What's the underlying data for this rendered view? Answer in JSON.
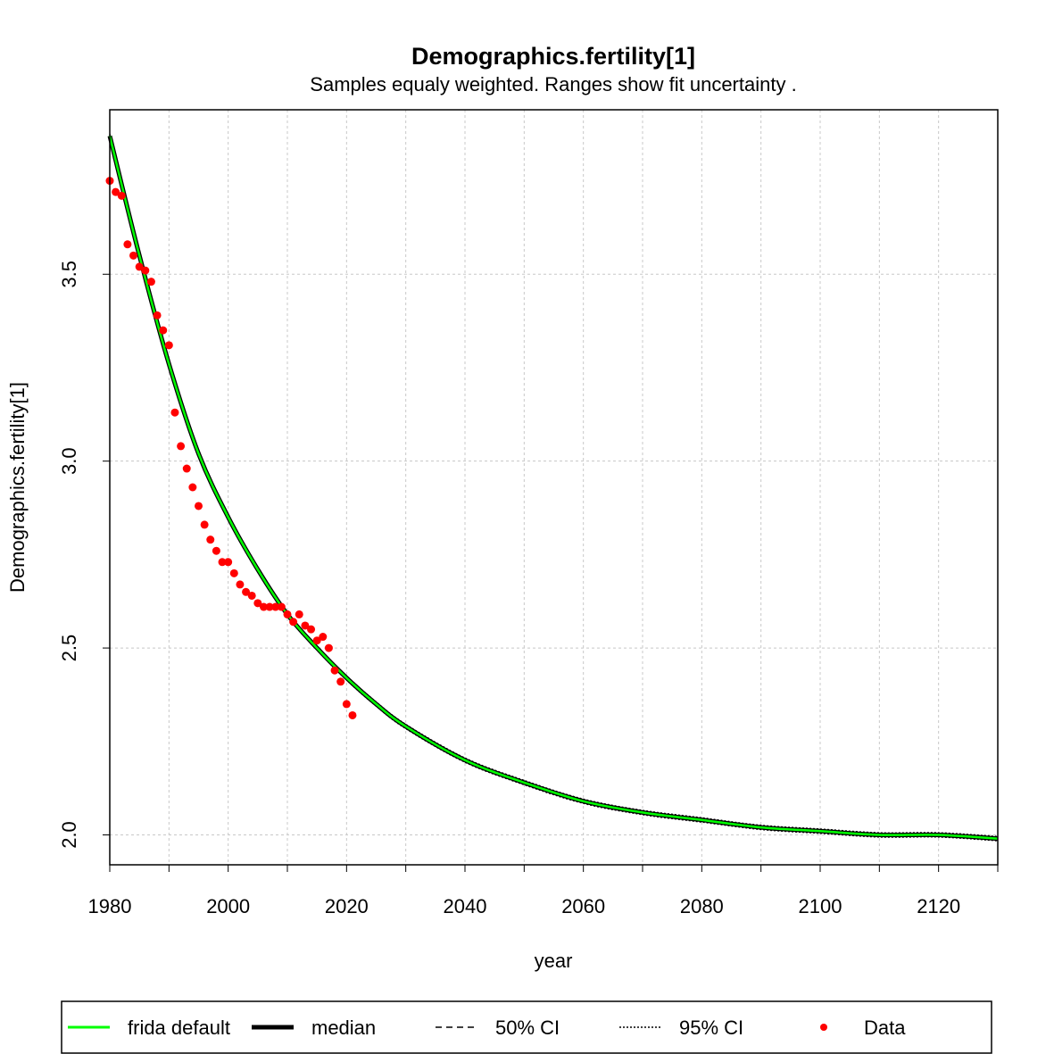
{
  "chart_data": {
    "type": "line",
    "title": "Demographics.fertility[1]",
    "subtitle": "Samples equaly weighted. Ranges show  fit uncertainty .",
    "xlabel": "year",
    "ylabel": "Demographics.fertility[1]",
    "xlim": [
      1980,
      2130
    ],
    "ylim": [
      1.92,
      3.94
    ],
    "x_ticks": [
      "1980",
      "2000",
      "2020",
      "2040",
      "2060",
      "2080",
      "2100",
      "2120"
    ],
    "y_ticks": [
      "2.0",
      "2.5",
      "3.0",
      "3.5"
    ],
    "grid": true,
    "legend_position": "bottom",
    "legend": [
      {
        "label": "frida default",
        "style": "green-line"
      },
      {
        "label": "median",
        "style": "thick-black-line"
      },
      {
        "label": "50% CI",
        "style": "dashed-line"
      },
      {
        "label": "95% CI",
        "style": "dotted-line"
      },
      {
        "label": "Data",
        "style": "red-point"
      }
    ],
    "colors": {
      "frida_default": "#00ff00",
      "median": "#000000",
      "data": "#ff0000",
      "grid": "#c8c8c8"
    },
    "series": [
      {
        "name": "frida default",
        "x": [
          1980,
          1985,
          1990,
          1995,
          2000,
          2005,
          2010,
          2015,
          2020,
          2025,
          2030,
          2040,
          2050,
          2060,
          2070,
          2080,
          2090,
          2100,
          2110,
          2120,
          2130
        ],
        "y": [
          3.87,
          3.55,
          3.26,
          3.02,
          2.85,
          2.71,
          2.59,
          2.5,
          2.42,
          2.35,
          2.29,
          2.2,
          2.14,
          2.09,
          2.06,
          2.04,
          2.02,
          2.01,
          2.0,
          2.0,
          1.99
        ]
      },
      {
        "name": "median",
        "x": [
          1980,
          1985,
          1990,
          1995,
          2000,
          2005,
          2010,
          2015,
          2020,
          2025,
          2030,
          2040,
          2050,
          2060,
          2070,
          2080,
          2090,
          2100,
          2110,
          2120,
          2130
        ],
        "y": [
          3.87,
          3.55,
          3.26,
          3.02,
          2.85,
          2.71,
          2.59,
          2.5,
          2.42,
          2.35,
          2.29,
          2.2,
          2.14,
          2.09,
          2.06,
          2.04,
          2.02,
          2.01,
          2.0,
          2.0,
          1.99
        ]
      },
      {
        "name": "Data",
        "x": [
          1980,
          1981,
          1982,
          1983,
          1984,
          1985,
          1986,
          1987,
          1988,
          1989,
          1990,
          1991,
          1992,
          1993,
          1994,
          1995,
          1996,
          1997,
          1998,
          1999,
          2000,
          2001,
          2002,
          2003,
          2004,
          2005,
          2006,
          2007,
          2008,
          2009,
          2010,
          2011,
          2012,
          2013,
          2014,
          2015,
          2016,
          2017,
          2018,
          2019,
          2020,
          2021
        ],
        "y": [
          3.75,
          3.72,
          3.71,
          3.58,
          3.55,
          3.52,
          3.51,
          3.48,
          3.39,
          3.35,
          3.31,
          3.13,
          3.04,
          2.98,
          2.93,
          2.88,
          2.83,
          2.79,
          2.76,
          2.73,
          2.73,
          2.7,
          2.67,
          2.65,
          2.64,
          2.62,
          2.61,
          2.61,
          2.61,
          2.61,
          2.59,
          2.57,
          2.59,
          2.56,
          2.55,
          2.52,
          2.53,
          2.5,
          2.44,
          2.41,
          2.35,
          2.32
        ]
      }
    ]
  }
}
